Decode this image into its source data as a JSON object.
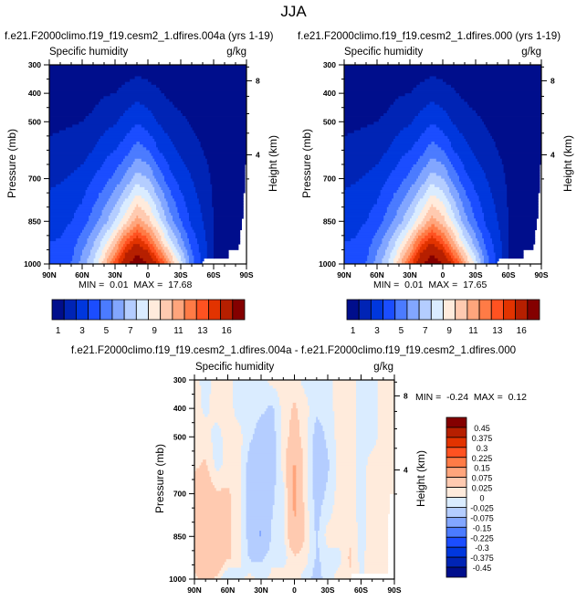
{
  "title": "JJA",
  "chart_data": [
    {
      "type": "heatmap",
      "subtitle": "f.e21.F2000climo.f19_f19.cesm2_1.dfires.004a (yrs 1-19)",
      "left_label": "Specific humidity",
      "right_label": "g/kg",
      "ylabel": "Pressure (mb)",
      "y2label": "Height (km)",
      "min_label": "MIN =",
      "min": "0.01",
      "max_label": "MAX =",
      "max": "17.68",
      "x_ticks": [
        "90N",
        "60N",
        "30N",
        "0",
        "30S",
        "60S",
        "90S"
      ],
      "y_ticks": [
        300,
        400,
        500,
        700,
        850,
        1000
      ],
      "y2_ticks": [
        8,
        4
      ],
      "xlim": [
        90,
        -90
      ],
      "ylim": [
        300,
        1000
      ],
      "levels": [
        1,
        2,
        3,
        4,
        5,
        6,
        7,
        8,
        9,
        10,
        11,
        12,
        13,
        14,
        16
      ],
      "colorbar_labels": [
        "1",
        "3",
        "5",
        "7",
        "9",
        "11",
        "13",
        "16"
      ],
      "colors": [
        "#000e8c",
        "#0024b5",
        "#0037dd",
        "#1b4dff",
        "#4b7bff",
        "#82a6ff",
        "#b4cdff",
        "#daecff",
        "#ffebdc",
        "#ffcab0",
        "#ffa57c",
        "#ff7b46",
        "#ff5221",
        "#e23300",
        "#b61f00",
        "#840000"
      ],
      "lats": [
        90,
        80,
        70,
        60,
        50,
        40,
        30,
        20,
        10,
        0,
        -10,
        -20,
        -30,
        -40,
        -50,
        -60,
        -70,
        -80,
        -90
      ],
      "pressures": [
        300,
        400,
        500,
        600,
        700,
        850,
        925,
        1000
      ],
      "values": [
        [
          0.2,
          0.4,
          0.7,
          1.3,
          1.8,
          2.6,
          3.0,
          3.3
        ],
        [
          0.2,
          0.4,
          0.8,
          1.4,
          1.9,
          2.7,
          3.1,
          3.5
        ],
        [
          0.2,
          0.5,
          0.9,
          1.5,
          2.1,
          3.0,
          3.5,
          4.0
        ],
        [
          0.2,
          0.6,
          1.0,
          1.6,
          2.4,
          3.5,
          4.5,
          5.5
        ],
        [
          0.3,
          0.7,
          1.2,
          2.0,
          3.0,
          4.5,
          5.8,
          7.0
        ],
        [
          0.3,
          0.9,
          1.6,
          2.6,
          3.6,
          5.6,
          7.5,
          9.5
        ],
        [
          0.4,
          1.0,
          1.9,
          3.0,
          4.3,
          7.0,
          9.5,
          12.5
        ],
        [
          0.5,
          1.3,
          2.4,
          3.6,
          5.3,
          8.8,
          12.5,
          15.5
        ],
        [
          0.6,
          1.6,
          2.9,
          4.5,
          6.5,
          10.5,
          14.0,
          17.5
        ],
        [
          0.5,
          1.4,
          2.5,
          4.0,
          6.0,
          9.5,
          12.5,
          16.0
        ],
        [
          0.4,
          1.1,
          1.9,
          3.0,
          4.6,
          7.5,
          10.0,
          13.5
        ],
        [
          0.3,
          0.8,
          1.5,
          2.3,
          3.4,
          5.5,
          7.5,
          10.5
        ],
        [
          0.2,
          0.6,
          1.2,
          1.8,
          2.6,
          4.0,
          5.5,
          7.5
        ],
        [
          0.2,
          0.4,
          0.9,
          1.4,
          2.0,
          2.8,
          3.6,
          4.5
        ],
        [
          0.1,
          0.3,
          0.6,
          1.0,
          1.5,
          2.0,
          2.5,
          2.8
        ],
        [
          0.1,
          0.2,
          0.4,
          0.6,
          0.8,
          1.0,
          1.0,
          1.0
        ],
        [
          0.1,
          0.1,
          0.2,
          0.3,
          0.5,
          0.6,
          0.6,
          0.6
        ],
        [
          0.1,
          0.1,
          0.2,
          0.3,
          0.4,
          0.4,
          0.4,
          0.4
        ],
        [
          0.1,
          0.1,
          0.2,
          0.3,
          0.3,
          0.3,
          0.3,
          0.3
        ]
      ],
      "surface_pressure": {
        "lats": [
          -50,
          -51,
          -73,
          -74,
          -83,
          -84,
          -86,
          -87,
          -88,
          -89,
          -90
        ],
        "p": [
          1000,
          977,
          977,
          950,
          950,
          875,
          875,
          750,
          750,
          650,
          650
        ]
      }
    },
    {
      "type": "heatmap",
      "subtitle": "f.e21.F2000climo.f19_f19.cesm2_1.dfires.000 (yrs 1-19)",
      "left_label": "Specific humidity",
      "right_label": "g/kg",
      "ylabel": "Pressure (mb)",
      "y2label": "Height (km)",
      "min_label": "MIN =",
      "min": "0.01",
      "max_label": "MAX =",
      "max": "17.65",
      "x_ticks": [
        "90N",
        "60N",
        "30N",
        "0",
        "30S",
        "60S",
        "90S"
      ],
      "y_ticks": [
        300,
        400,
        500,
        700,
        850,
        1000
      ],
      "y2_ticks": [
        8,
        4
      ],
      "xlim": [
        90,
        -90
      ],
      "ylim": [
        300,
        1000
      ],
      "levels": [
        1,
        2,
        3,
        4,
        5,
        6,
        7,
        8,
        9,
        10,
        11,
        12,
        13,
        14,
        16
      ],
      "colorbar_labels": [
        "1",
        "3",
        "5",
        "7",
        "9",
        "11",
        "13",
        "16"
      ],
      "colors": [
        "#000e8c",
        "#0024b5",
        "#0037dd",
        "#1b4dff",
        "#4b7bff",
        "#82a6ff",
        "#b4cdff",
        "#daecff",
        "#ffebdc",
        "#ffcab0",
        "#ffa57c",
        "#ff7b46",
        "#ff5221",
        "#e23300",
        "#b61f00",
        "#840000"
      ],
      "lats": [
        90,
        80,
        70,
        60,
        50,
        40,
        30,
        20,
        10,
        0,
        -10,
        -20,
        -30,
        -40,
        -50,
        -60,
        -70,
        -80,
        -90
      ],
      "pressures": [
        300,
        400,
        500,
        600,
        700,
        850,
        925,
        1000
      ],
      "values": [
        [
          0.2,
          0.4,
          0.7,
          1.3,
          1.8,
          2.6,
          3.0,
          3.3
        ],
        [
          0.2,
          0.4,
          0.8,
          1.4,
          1.9,
          2.7,
          3.1,
          3.5
        ],
        [
          0.2,
          0.5,
          0.9,
          1.5,
          2.1,
          3.0,
          3.5,
          4.0
        ],
        [
          0.2,
          0.6,
          1.0,
          1.6,
          2.4,
          3.5,
          4.5,
          5.5
        ],
        [
          0.3,
          0.7,
          1.2,
          2.0,
          3.0,
          4.5,
          5.8,
          7.0
        ],
        [
          0.3,
          0.9,
          1.6,
          2.6,
          3.6,
          5.6,
          7.5,
          9.5
        ],
        [
          0.4,
          1.0,
          1.9,
          3.0,
          4.3,
          7.0,
          9.5,
          12.5
        ],
        [
          0.5,
          1.3,
          2.4,
          3.6,
          5.3,
          8.8,
          12.5,
          15.5
        ],
        [
          0.6,
          1.6,
          2.9,
          4.5,
          6.5,
          10.5,
          14.0,
          17.4
        ],
        [
          0.5,
          1.4,
          2.5,
          4.0,
          6.0,
          9.5,
          12.5,
          16.0
        ],
        [
          0.4,
          1.1,
          1.9,
          3.0,
          4.6,
          7.5,
          10.0,
          13.5
        ],
        [
          0.3,
          0.8,
          1.5,
          2.3,
          3.4,
          5.5,
          7.5,
          10.5
        ],
        [
          0.2,
          0.6,
          1.2,
          1.8,
          2.6,
          4.0,
          5.5,
          7.5
        ],
        [
          0.2,
          0.4,
          0.9,
          1.4,
          2.0,
          2.8,
          3.6,
          4.5
        ],
        [
          0.1,
          0.3,
          0.6,
          1.0,
          1.5,
          2.0,
          2.5,
          2.8
        ],
        [
          0.1,
          0.2,
          0.4,
          0.6,
          0.8,
          1.0,
          1.0,
          1.0
        ],
        [
          0.1,
          0.1,
          0.2,
          0.3,
          0.5,
          0.6,
          0.6,
          0.6
        ],
        [
          0.1,
          0.1,
          0.2,
          0.3,
          0.4,
          0.4,
          0.4,
          0.4
        ],
        [
          0.1,
          0.1,
          0.2,
          0.3,
          0.3,
          0.3,
          0.3,
          0.3
        ]
      ],
      "surface_pressure": {
        "lats": [
          -50,
          -51,
          -73,
          -74,
          -83,
          -84,
          -86,
          -87,
          -88,
          -89,
          -90
        ],
        "p": [
          1000,
          977,
          977,
          950,
          950,
          875,
          875,
          750,
          750,
          650,
          650
        ]
      }
    },
    {
      "type": "heatmap",
      "subtitle": "f.e21.F2000climo.f19_f19.cesm2_1.dfires.004a - f.e21.F2000climo.f19_f19.cesm2_1.dfires.000",
      "left_label": "Specific humidity",
      "right_label": "g/kg",
      "ylabel": "Pressure (mb)",
      "y2label": "Height (km)",
      "min_label": "MIN =",
      "min": "-0.24",
      "max_label": "MAX =",
      "max": "0.12",
      "x_ticks": [
        "90N",
        "60N",
        "30N",
        "0",
        "30S",
        "60S",
        "90S"
      ],
      "y_ticks": [
        300,
        400,
        500,
        700,
        850,
        1000
      ],
      "y2_ticks": [
        8,
        4
      ],
      "xlim": [
        90,
        -90
      ],
      "ylim": [
        300,
        1000
      ],
      "levels": [
        -0.45,
        -0.375,
        -0.3,
        -0.225,
        -0.15,
        -0.075,
        -0.025,
        0,
        0.025,
        0.075,
        0.15,
        0.225,
        0.3,
        0.375,
        0.45
      ],
      "colorbar_labels": [
        "0.45",
        "0.375",
        "0.3",
        "0.225",
        "0.15",
        "0.075",
        "0.025",
        "0",
        "-0.025",
        "-0.075",
        "-0.15",
        "-0.225",
        "-0.3",
        "-0.375",
        "-0.45"
      ],
      "colors": [
        "#000e8c",
        "#0024b5",
        "#0037dd",
        "#1b4dff",
        "#4b7bff",
        "#82a6ff",
        "#b4cdff",
        "#daecff",
        "#ffebdc",
        "#ffcab0",
        "#ffa57c",
        "#ff7b46",
        "#ff5221",
        "#e23300",
        "#b61f00",
        "#840000"
      ],
      "lats": [
        90,
        80,
        70,
        60,
        50,
        40,
        30,
        20,
        10,
        0,
        -10,
        -20,
        -30,
        -40,
        -50,
        -60,
        -70,
        -80,
        -90
      ],
      "pressures": [
        300,
        400,
        500,
        600,
        700,
        850,
        925,
        1000
      ],
      "values": [
        [
          0.01,
          0.01,
          0.01,
          0.02,
          0.04,
          0.04,
          0.04,
          0.02
        ],
        [
          -0.01,
          -0.005,
          0.01,
          0.03,
          0.05,
          0.04,
          0.05,
          0.03
        ],
        [
          0.01,
          0.01,
          -0.01,
          -0.01,
          0.03,
          0.04,
          0.06,
          0.02
        ],
        [
          0.01,
          0.01,
          0.01,
          0.01,
          0.03,
          0.03,
          0.03,
          -0.03
        ],
        [
          -0.01,
          -0.01,
          0.01,
          0.01,
          0.01,
          0.01,
          0.01,
          -0.01
        ],
        [
          -0.01,
          -0.01,
          -0.02,
          -0.04,
          -0.04,
          -0.04,
          -0.03,
          0.01
        ],
        [
          -0.01,
          -0.02,
          -0.04,
          -0.05,
          -0.06,
          -0.08,
          -0.03,
          -0.01
        ],
        [
          0.01,
          -0.03,
          -0.04,
          -0.04,
          -0.03,
          -0.02,
          -0.01,
          0.01
        ],
        [
          0.01,
          0.01,
          0.01,
          0.01,
          -0.01,
          -0.01,
          -0.01,
          0.01
        ],
        [
          0.01,
          0.03,
          0.04,
          0.08,
          0.09,
          0.07,
          0.02,
          0.01
        ],
        [
          -0.01,
          0.01,
          0.01,
          0.01,
          0.01,
          0.02,
          0.01,
          -0.01
        ],
        [
          -0.02,
          -0.02,
          -0.04,
          -0.05,
          -0.04,
          -0.03,
          -0.03,
          -0.04
        ],
        [
          -0.01,
          -0.01,
          -0.02,
          -0.03,
          -0.02,
          0.01,
          -0.01,
          -0.01
        ],
        [
          0.01,
          0.01,
          0.01,
          0.01,
          0.01,
          0.01,
          -0.01,
          0.01
        ],
        [
          0.01,
          0.01,
          0.01,
          0.01,
          0.01,
          0.02,
          0.03,
          0.02
        ],
        [
          -0.01,
          -0.01,
          -0.01,
          -0.01,
          -0.01,
          -0.01,
          -0.01,
          0.0
        ],
        [
          -0.01,
          -0.01,
          -0.01,
          0.01,
          0.01,
          0.01,
          0.02,
          0.0
        ],
        [
          0.01,
          0.01,
          0.01,
          0.01,
          0.01,
          0.01,
          0.01,
          0.01
        ],
        [
          0.01,
          0.01,
          0.01,
          0.01,
          0.01,
          0.01,
          0.01,
          0.01
        ]
      ],
      "surface_pressure": {
        "lats": [
          -50,
          -51,
          -84,
          -85,
          -90
        ],
        "p": [
          1000,
          980,
          980,
          700,
          700
        ]
      }
    }
  ]
}
